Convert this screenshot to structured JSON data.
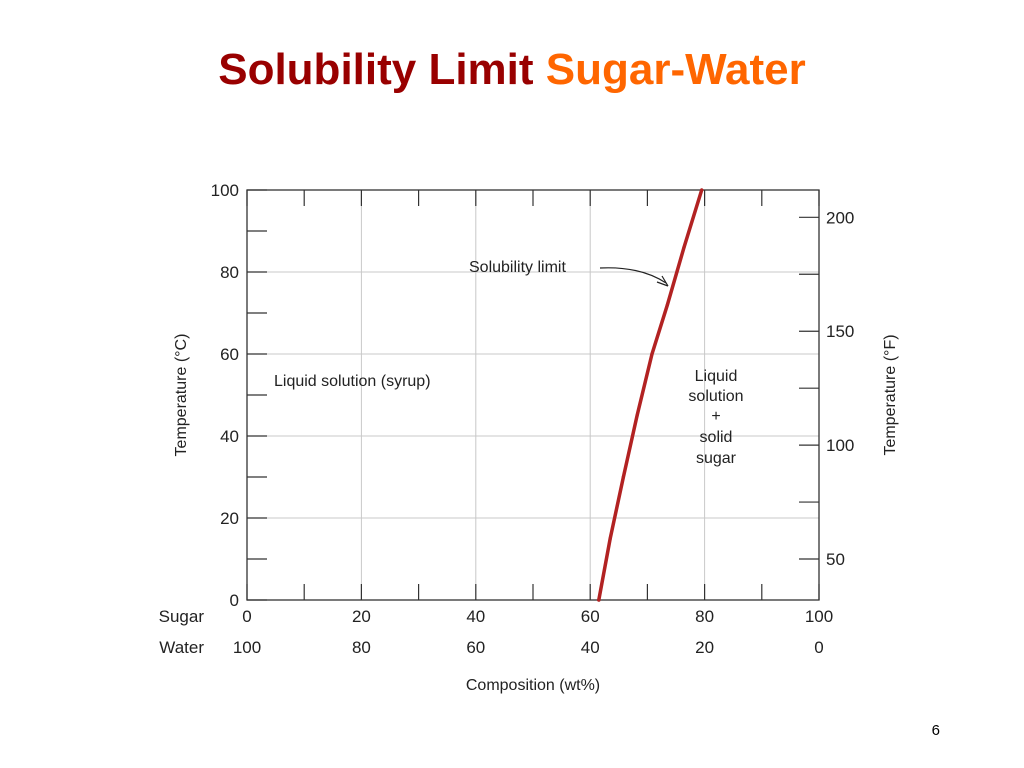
{
  "slide": {
    "title_main": "Solubility Limit",
    "title_accent": "Sugar-Water",
    "page_number": "6"
  },
  "colors": {
    "title_main": "#990000",
    "title_accent": "#ff6600",
    "curve": "#b22222",
    "grid": "#c8c8c8",
    "axes": "#333333"
  },
  "chart_data": {
    "type": "line",
    "xlabel": "Composition (wt%)",
    "ylabel": "Temperature (°C)",
    "y2label": "Temperature (°F)",
    "xlim": [
      0,
      100
    ],
    "ylim": [
      0,
      100
    ],
    "y2lim": [
      32,
      212
    ],
    "grid": true,
    "x_row_labels": [
      "Sugar",
      "Water"
    ],
    "x_ticks": [
      0,
      20,
      40,
      60,
      80,
      100
    ],
    "x_tick_labels_sugar": [
      "0",
      "20",
      "40",
      "60",
      "80",
      "100"
    ],
    "x_tick_labels_water": [
      "100",
      "80",
      "60",
      "40",
      "20",
      "0"
    ],
    "y_ticks": [
      0,
      20,
      40,
      60,
      80,
      100
    ],
    "y_tick_labels": [
      "0",
      "20",
      "40",
      "60",
      "80",
      "100"
    ],
    "y2_ticks": [
      50,
      100,
      150,
      200
    ],
    "y2_tick_labels": [
      "50",
      "100",
      "150",
      "200"
    ],
    "series": [
      {
        "name": "Solubility limit",
        "x": [
          61.5,
          63.5,
          65.8,
          68.2,
          70.8,
          73.5,
          76.4,
          79.5
        ],
        "y": [
          0,
          15,
          30,
          45,
          60,
          72,
          86,
          100
        ]
      }
    ],
    "annotations": {
      "solubility_limit": "Solubility limit",
      "liquid_region": "Liquid solution (syrup)",
      "two_phase_region": [
        "Liquid",
        "solution",
        "+",
        "solid",
        "sugar"
      ]
    }
  }
}
